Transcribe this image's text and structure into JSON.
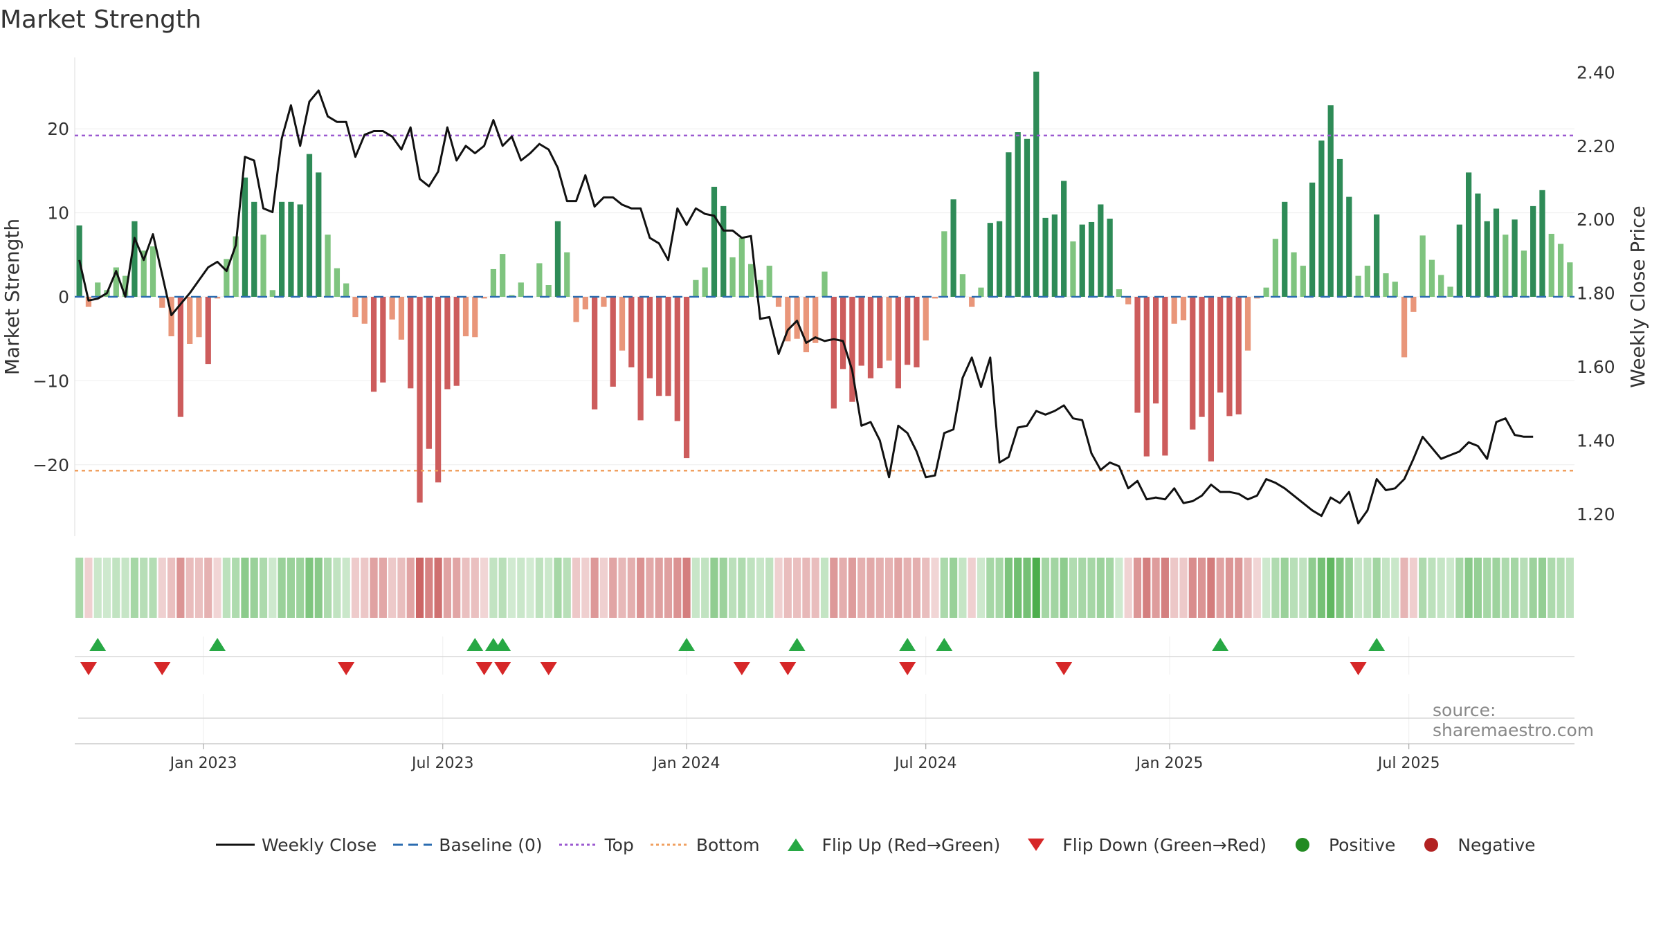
{
  "title": "Market Strength",
  "source": "source: sharemaestro.com",
  "legend": {
    "weekly_close": "Weekly Close",
    "baseline": "Baseline (0)",
    "top": "Top",
    "bottom": "Bottom",
    "flip_up": "Flip Up (Red→Green)",
    "flip_down": "Flip Down (Green→Red)",
    "positive": "Positive",
    "negative": "Negative"
  },
  "colors": {
    "positive_dark": "#2e8b57",
    "positive_light": "#7fc47f",
    "negative_dark": "#cd5c5c",
    "negative_light": "#e9967a",
    "line": "#111111",
    "top": "#9b59d0",
    "bottom": "#f0a060",
    "baseline": "#2b6cb0",
    "flip_up": "#27a844",
    "flip_down": "#d62728",
    "positive_dot": "#228b22",
    "negative_dot": "#b22222"
  },
  "chart_data": {
    "type": "bar",
    "title": "Market Strength",
    "ylabel_left": "Market Strength",
    "ylabel_right": "Weekly Close Price",
    "y_left_ticks": [
      "20",
      "10",
      "0",
      "−10",
      "−20"
    ],
    "y_left_tick_values": [
      20,
      10,
      0,
      -10,
      -20
    ],
    "ylim_left": [
      -28.5,
      28.5
    ],
    "y_right_ticks": [
      "2.40",
      "2.20",
      "2.00",
      "1.80",
      "1.60",
      "1.40",
      "1.20"
    ],
    "y_right_tick_values": [
      2.4,
      2.2,
      2.0,
      1.8,
      1.6,
      1.4,
      1.2
    ],
    "ylim_right": [
      1.14,
      2.44
    ],
    "x_ticks": [
      "Jan 2023",
      "Jul 2023",
      "Jan 2024",
      "Jul 2024",
      "Jan 2025",
      "Jul 2025"
    ],
    "x_tick_weeks": [
      14,
      40,
      66.5,
      92.5,
      119,
      145
    ],
    "top_threshold": 19.2,
    "bottom_threshold": -20.7,
    "baseline": 0,
    "start": "2022-10-03",
    "weeks": 159,
    "strength": [
      8.5,
      -1.2,
      1.7,
      0.8,
      3.5,
      2.5,
      9.0,
      5.5,
      6.0,
      -1.3,
      -4.7,
      -14.3,
      -5.6,
      -4.8,
      -8.0,
      -0.2,
      4.5,
      7.2,
      14.2,
      11.3,
      7.4,
      0.8,
      11.3,
      11.3,
      11.0,
      17.0,
      14.8,
      7.4,
      3.4,
      1.6,
      -2.4,
      -3.2,
      -11.3,
      -10.2,
      -2.7,
      -5.1,
      -10.9,
      -24.5,
      -18.1,
      -22.1,
      -11.0,
      -10.6,
      -4.7,
      -4.8,
      -0.2,
      3.3,
      5.1,
      0.2,
      1.7,
      0.1,
      4.0,
      1.4,
      9.0,
      5.3,
      -3.0,
      -1.5,
      -13.4,
      -1.2,
      -10.7,
      -6.4,
      -8.4,
      -14.7,
      -9.7,
      -11.8,
      -11.8,
      -14.8,
      -19.2,
      2.0,
      3.5,
      13.1,
      10.8,
      4.7,
      7.0,
      3.9,
      2.0,
      3.7,
      -1.2,
      -5.3,
      -5.0,
      -6.6,
      -5.5,
      3.0,
      -13.3,
      -8.6,
      -12.5,
      -8.2,
      -9.7,
      -8.5,
      -7.6,
      -10.9,
      -8.1,
      -8.4,
      -5.2,
      -0.2,
      7.8,
      11.6,
      2.7,
      -1.2,
      1.1,
      8.8,
      9.0,
      17.2,
      19.6,
      18.8,
      26.8,
      9.4,
      9.8,
      13.8,
      6.6,
      8.6,
      8.9,
      11.0,
      9.3,
      0.9,
      -0.9,
      -13.8,
      -19.0,
      -12.7,
      -18.9,
      -3.2,
      -2.8,
      -15.8,
      -14.3,
      -19.6,
      -11.4,
      -14.2,
      -14.0,
      -6.4,
      -0.2,
      1.1,
      6.9,
      11.3,
      5.3,
      3.7,
      13.6,
      18.6,
      22.8,
      16.4,
      11.9,
      2.5,
      3.7,
      9.8,
      2.8,
      1.8,
      -7.2,
      -1.8,
      7.3,
      4.4,
      2.6,
      1.2,
      8.6,
      14.8,
      12.3,
      9.0,
      10.5,
      7.4,
      9.2,
      5.5,
      10.8,
      12.7,
      7.5,
      6.3,
      4.1
    ],
    "close_price": [
      1.89,
      1.78,
      1.785,
      1.8,
      1.86,
      1.79,
      1.95,
      1.89,
      1.96,
      1.85,
      1.74,
      1.77,
      1.8,
      1.835,
      1.87,
      1.885,
      1.86,
      1.93,
      2.17,
      2.16,
      2.03,
      2.02,
      2.22,
      2.31,
      2.2,
      2.32,
      2.35,
      2.28,
      2.265,
      2.265,
      2.17,
      2.23,
      2.24,
      2.24,
      2.225,
      2.19,
      2.25,
      2.11,
      2.09,
      2.13,
      2.25,
      2.16,
      2.2,
      2.18,
      2.2,
      2.27,
      2.2,
      2.225,
      2.16,
      2.18,
      2.205,
      2.19,
      2.14,
      2.05,
      2.05,
      2.12,
      2.035,
      2.06,
      2.06,
      2.04,
      2.03,
      2.03,
      1.95,
      1.935,
      1.89,
      2.03,
      1.985,
      2.03,
      2.015,
      2.01,
      1.97,
      1.97,
      1.95,
      1.955,
      1.73,
      1.735,
      1.635,
      1.7,
      1.725,
      1.665,
      1.68,
      1.67,
      1.675,
      1.67,
      1.59,
      1.44,
      1.45,
      1.4,
      1.3,
      1.44,
      1.42,
      1.37,
      1.3,
      1.305,
      1.42,
      1.43,
      1.57,
      1.625,
      1.545,
      1.625,
      1.34,
      1.355,
      1.435,
      1.44,
      1.48,
      1.47,
      1.48,
      1.495,
      1.46,
      1.455,
      1.365,
      1.32,
      1.34,
      1.33,
      1.27,
      1.29,
      1.24,
      1.245,
      1.24,
      1.27,
      1.23,
      1.235,
      1.25,
      1.28,
      1.26,
      1.26,
      1.255,
      1.24,
      1.25,
      1.295,
      1.285,
      1.27,
      1.25,
      1.23,
      1.21,
      1.195,
      1.245,
      1.23,
      1.26,
      1.175,
      1.21,
      1.295,
      1.265,
      1.27,
      1.295,
      1.35,
      1.41,
      1.38,
      1.35,
      1.36,
      1.37,
      1.395,
      1.385,
      1.35,
      1.45,
      1.46,
      1.415,
      1.41,
      1.41
    ],
    "flip_up_weeks": [
      2,
      15,
      43,
      45,
      46,
      66,
      78,
      90,
      94,
      124,
      141
    ],
    "flip_down_weeks": [
      1,
      9,
      29,
      44,
      46,
      51,
      72,
      77,
      90,
      107,
      139
    ]
  }
}
